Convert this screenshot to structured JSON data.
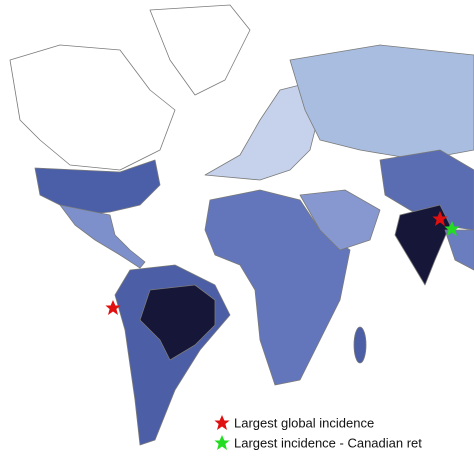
{
  "legend": {
    "items": [
      {
        "label": "Largest global incidence"
      },
      {
        "label": "Largest incidence - Canadian ret"
      }
    ]
  }
}
